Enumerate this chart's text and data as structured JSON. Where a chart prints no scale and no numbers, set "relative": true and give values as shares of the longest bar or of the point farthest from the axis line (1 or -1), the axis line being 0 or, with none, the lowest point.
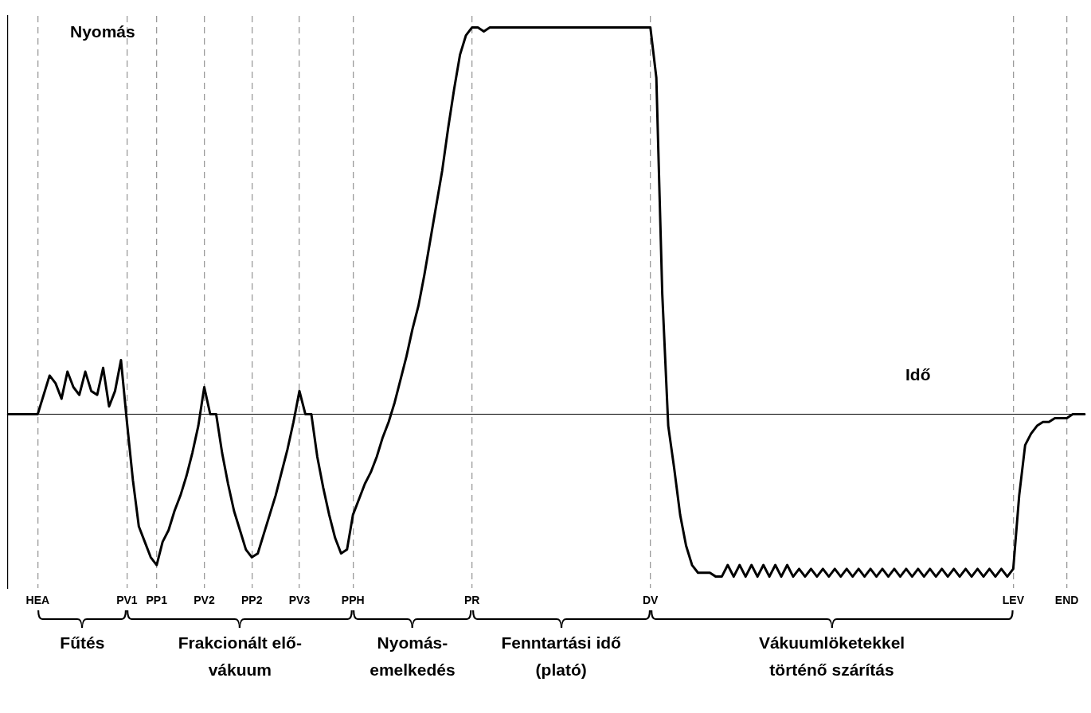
{
  "chart_data": {
    "type": "line",
    "xlabel": "Idő",
    "ylabel": "Nyomás",
    "relative": true,
    "categories": [
      null,
      null,
      null,
      null,
      null,
      "HEA",
      null,
      null,
      null,
      null,
      null,
      null,
      null,
      null,
      null,
      null,
      null,
      null,
      null,
      null,
      "PV1",
      null,
      null,
      null,
      null,
      "PP1",
      null,
      null,
      null,
      null,
      null,
      null,
      null,
      "PV2",
      null,
      null,
      null,
      null,
      null,
      null,
      null,
      "PP2",
      null,
      null,
      null,
      null,
      null,
      null,
      null,
      "PV3",
      null,
      null,
      null,
      null,
      null,
      null,
      null,
      null,
      "PPH",
      null,
      null,
      null,
      null,
      null,
      null,
      null,
      null,
      null,
      null,
      null,
      null,
      null,
      null,
      null,
      null,
      null,
      null,
      null,
      "PR",
      null,
      null,
      null,
      null,
      null,
      null,
      null,
      null,
      null,
      null,
      null,
      null,
      null,
      null,
      null,
      null,
      null,
      null,
      null,
      null,
      null,
      null,
      null,
      null,
      null,
      null,
      null,
      null,
      null,
      "DV",
      null,
      null,
      null,
      null,
      null,
      null,
      null,
      null,
      null,
      null,
      null,
      null,
      null,
      null,
      null,
      null,
      null,
      null,
      null,
      null,
      null,
      null,
      null,
      null,
      null,
      null,
      null,
      null,
      null,
      null,
      null,
      null,
      null,
      null,
      null,
      null,
      null,
      null,
      null,
      null,
      null,
      null,
      null,
      null,
      null,
      null,
      null,
      null,
      null,
      null,
      null,
      null,
      null,
      null,
      null,
      null,
      null,
      null,
      null,
      null,
      "LEV",
      null,
      null,
      null,
      null,
      null,
      null,
      null,
      null,
      "END",
      null,
      null,
      null
    ],
    "series": [
      {
        "color": "#000000",
        "values": [
          0,
          0,
          0,
          0,
          0,
          0,
          0.05,
          0.1,
          0.08,
          0.04,
          0.11,
          0.07,
          0.05,
          0.11,
          0.06,
          0.05,
          0.12,
          0.02,
          0.06,
          0.14,
          -0.02,
          -0.17,
          -0.29,
          -0.33,
          -0.37,
          -0.39,
          -0.33,
          -0.3,
          -0.25,
          -0.21,
          -0.16,
          -0.1,
          -0.03,
          0.07,
          0,
          0,
          -0.1,
          -0.18,
          -0.25,
          -0.3,
          -0.35,
          -0.37,
          -0.36,
          -0.31,
          -0.26,
          -0.21,
          -0.15,
          -0.09,
          -0.02,
          0.06,
          0,
          0,
          -0.11,
          -0.19,
          -0.26,
          -0.32,
          -0.36,
          -0.35,
          -0.26,
          -0.22,
          -0.18,
          -0.15,
          -0.11,
          -0.06,
          -0.02,
          0.03,
          0.09,
          0.15,
          0.22,
          0.28,
          0.36,
          0.45,
          0.54,
          0.63,
          0.74,
          0.84,
          0.93,
          0.98,
          1,
          1,
          0.99,
          1,
          1,
          1,
          1,
          1,
          1,
          1,
          1,
          1,
          1,
          1,
          1,
          1,
          1,
          1,
          1,
          1,
          1,
          1,
          1,
          1,
          1,
          1,
          1,
          1,
          1,
          1,
          1,
          0.87,
          0.31,
          -0.03,
          -0.14,
          -0.26,
          -0.34,
          -0.39,
          -0.41,
          -0.41,
          -0.41,
          -0.42,
          -0.42,
          -0.39,
          -0.42,
          -0.39,
          -0.42,
          -0.39,
          -0.42,
          -0.39,
          -0.42,
          -0.39,
          -0.42,
          -0.39,
          -0.42,
          -0.4,
          -0.42,
          -0.4,
          -0.42,
          -0.4,
          -0.42,
          -0.4,
          -0.42,
          -0.4,
          -0.42,
          -0.4,
          -0.42,
          -0.4,
          -0.42,
          -0.4,
          -0.42,
          -0.4,
          -0.42,
          -0.4,
          -0.42,
          -0.4,
          -0.42,
          -0.4,
          -0.42,
          -0.4,
          -0.42,
          -0.4,
          -0.42,
          -0.4,
          -0.42,
          -0.4,
          -0.42,
          -0.4,
          -0.42,
          -0.4,
          -0.42,
          -0.4,
          -0.21,
          -0.08,
          -0.05,
          -0.03,
          -0.02,
          -0.02,
          -0.01,
          -0.01,
          -0.01,
          0,
          0,
          0
        ]
      }
    ],
    "annotations": [
      "Fűtés",
      "Frakcionált elő-vákuum",
      "Nyomás-emelkedés",
      "Fenntartási idő (plató)",
      "Vákuumlöketekkel történő szárítás"
    ],
    "legend": false,
    "grid": "x",
    "tick_labels": "x",
    "marker": "none",
    "line_style": "solid"
  }
}
